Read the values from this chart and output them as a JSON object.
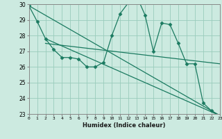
{
  "xlabel": "Humidex (Indice chaleur)",
  "bg_color": "#cceae0",
  "grid_color": "#99ccbb",
  "line_color": "#1a7a60",
  "xmin": 0,
  "xmax": 23,
  "ymin": 23,
  "ymax": 30,
  "yticks": [
    23,
    24,
    25,
    26,
    27,
    28,
    29,
    30
  ],
  "xticks": [
    0,
    1,
    2,
    3,
    4,
    5,
    6,
    7,
    8,
    9,
    10,
    11,
    12,
    13,
    14,
    15,
    16,
    17,
    18,
    19,
    20,
    21,
    22,
    23
  ],
  "series": [
    {
      "x": [
        0,
        1,
        2,
        3,
        4,
        5,
        6,
        7,
        8,
        9,
        10,
        11,
        12,
        13,
        14,
        15,
        16,
        17,
        18,
        19,
        20,
        21,
        22,
        23
      ],
      "y": [
        29.9,
        28.9,
        27.8,
        27.1,
        26.6,
        26.6,
        26.5,
        26.0,
        26.0,
        26.3,
        28.0,
        29.4,
        30.1,
        30.5,
        29.3,
        27.0,
        28.8,
        28.7,
        27.5,
        26.2,
        26.2,
        23.7,
        23.2,
        22.9
      ],
      "marker": true
    },
    {
      "x": [
        0,
        23
      ],
      "y": [
        29.9,
        22.9
      ],
      "marker": false
    },
    {
      "x": [
        2,
        23
      ],
      "y": [
        27.8,
        22.9
      ],
      "marker": false
    },
    {
      "x": [
        2,
        23
      ],
      "y": [
        27.5,
        26.2
      ],
      "marker": false
    }
  ]
}
